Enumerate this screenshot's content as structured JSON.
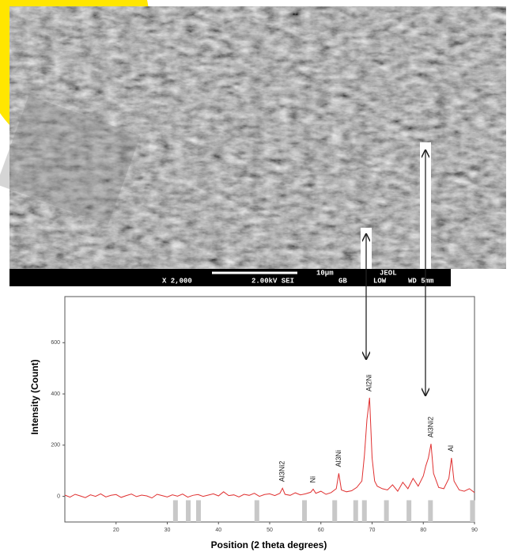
{
  "sem": {
    "scale_label": "10µm",
    "brand": "JEOL",
    "info": [
      "X 2,000",
      "2.00kV SEI",
      "GB",
      "LOW",
      "WD 5mm"
    ]
  },
  "chart_data": {
    "type": "line",
    "xlabel": "Position (2 theta degrees)",
    "ylabel": "Intensity (Count)",
    "xlim": [
      10,
      90
    ],
    "xticks": [
      20,
      30,
      40,
      50,
      60,
      70,
      80,
      90
    ],
    "ylim": [
      -100,
      780
    ],
    "yticks": [
      0,
      200,
      400,
      600
    ],
    "x": [
      10,
      11,
      12,
      13,
      14,
      15,
      16,
      17,
      18,
      19,
      20,
      21,
      22,
      23,
      24,
      25,
      26,
      27,
      28,
      29,
      30,
      31,
      32,
      33,
      34,
      35,
      36,
      37,
      38,
      39,
      40,
      41,
      42,
      43,
      44,
      45,
      46,
      47,
      48,
      49,
      50,
      51,
      52,
      52.5,
      53,
      54,
      55,
      56,
      57,
      58,
      58.5,
      59,
      60,
      61,
      62,
      63,
      63.5,
      64,
      65,
      66,
      67,
      68,
      68.5,
      69,
      69.5,
      70,
      70.5,
      71,
      72,
      73,
      74,
      75,
      76,
      77,
      78,
      79,
      80,
      80.5,
      81,
      81.5,
      82,
      83,
      84,
      85,
      85.5,
      86,
      87,
      88,
      89,
      90
    ],
    "series": [
      {
        "color": "#e03030",
        "values": [
          5,
          -3,
          8,
          2,
          -5,
          6,
          0,
          10,
          -2,
          4,
          7,
          -4,
          3,
          9,
          -1,
          5,
          2,
          -6,
          8,
          3,
          -2,
          6,
          1,
          9,
          -3,
          4,
          7,
          0,
          5,
          10,
          2,
          18,
          3,
          6,
          -2,
          8,
          4,
          12,
          0,
          7,
          10,
          3,
          12,
          32,
          8,
          4,
          14,
          6,
          10,
          16,
          28,
          12,
          20,
          8,
          15,
          30,
          90,
          25,
          18,
          22,
          35,
          60,
          160,
          300,
          385,
          150,
          60,
          40,
          30,
          25,
          45,
          20,
          55,
          30,
          70,
          40,
          80,
          120,
          150,
          205,
          90,
          35,
          30,
          70,
          150,
          60,
          25,
          20,
          30,
          15
        ]
      }
    ],
    "reference_positions": [
      31.6,
      34.1,
      36.1,
      47.5,
      56.8,
      62.7,
      66.8,
      68.5,
      72.8,
      77.2,
      81.4,
      89.6
    ],
    "reference_color": "#c8c8c8",
    "annotations": [
      {
        "text": "Al3Ni2",
        "x": 52.5
      },
      {
        "text": "Ni",
        "x": 58.5
      },
      {
        "text": "Al3Ni",
        "x": 63.5
      },
      {
        "text": "Al2Ni",
        "x": 69.5
      },
      {
        "text": "Al3Ni2",
        "x": 81.5
      },
      {
        "text": "Al",
        "x": 85.5
      }
    ]
  }
}
